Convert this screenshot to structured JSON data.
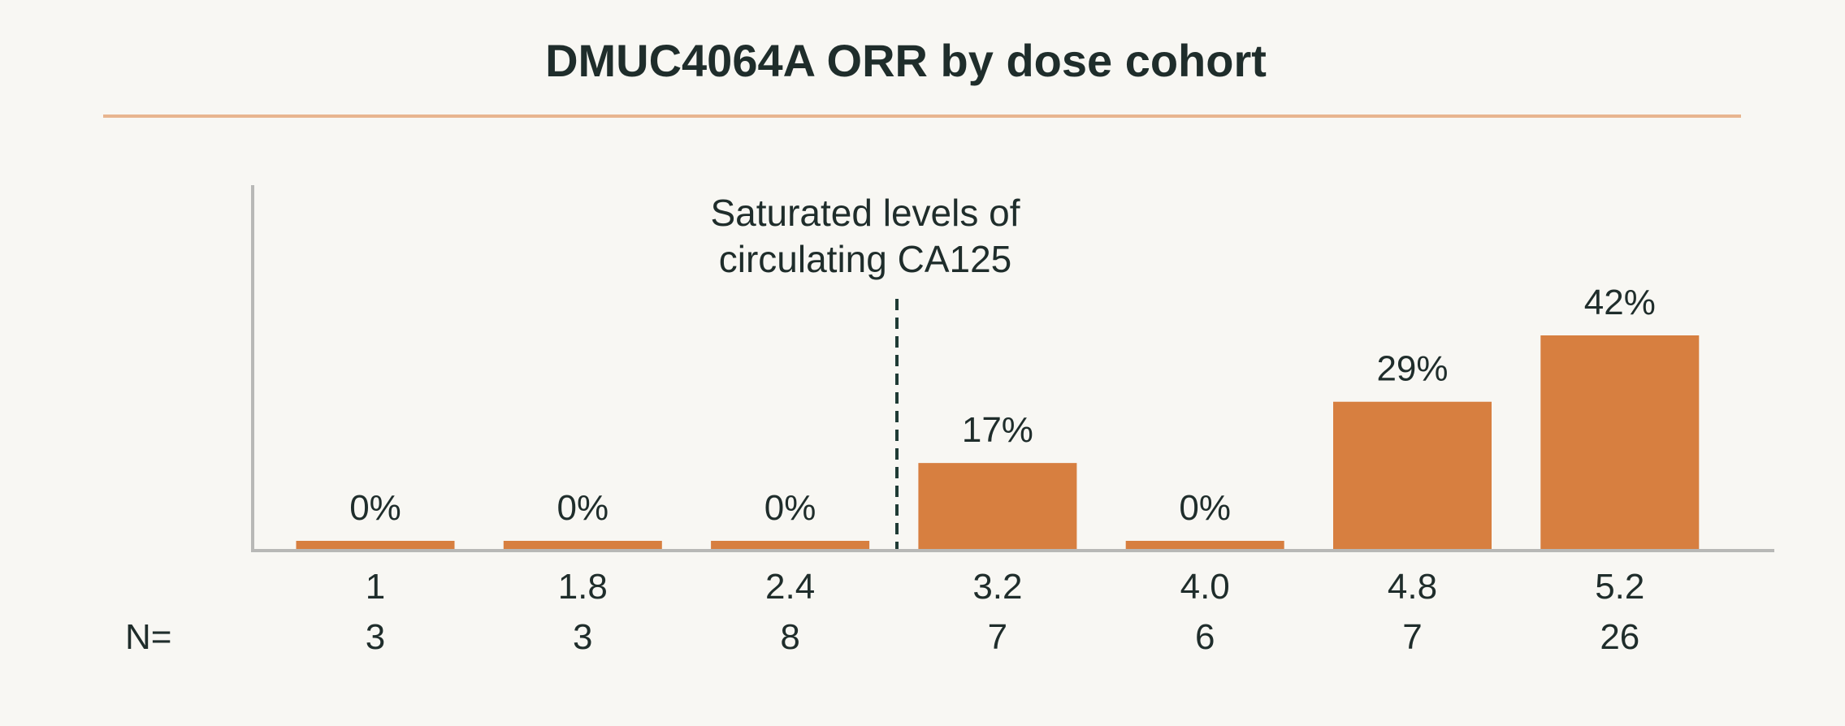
{
  "chart_data": {
    "type": "bar",
    "title": "DMUC4064A ORR by dose cohort",
    "xlabel": "",
    "ylabel": "",
    "categories": [
      "1",
      "1.8",
      "2.4",
      "3.2",
      "4.0",
      "4.8",
      "5.2"
    ],
    "values": [
      0,
      0,
      0,
      17,
      0,
      29,
      42
    ],
    "value_labels": [
      "0%",
      "0%",
      "0%",
      "17%",
      "0%",
      "29%",
      "42%"
    ],
    "n_label": "N=",
    "n_values": [
      "3",
      "3",
      "8",
      "7",
      "6",
      "7",
      "26"
    ],
    "annotation": {
      "line1": "Saturated levels of",
      "line2": "circulating CA125",
      "between_categories": [
        "2.4",
        "3.2"
      ]
    },
    "ylim": [
      0,
      50
    ],
    "grid": false,
    "legend": "none"
  },
  "colors": {
    "bar": "#d77f40",
    "accent_rule": "#e8b58f",
    "axis": "#b8b8b6",
    "text": "#1f2d2b",
    "background": "#f8f7f3"
  }
}
